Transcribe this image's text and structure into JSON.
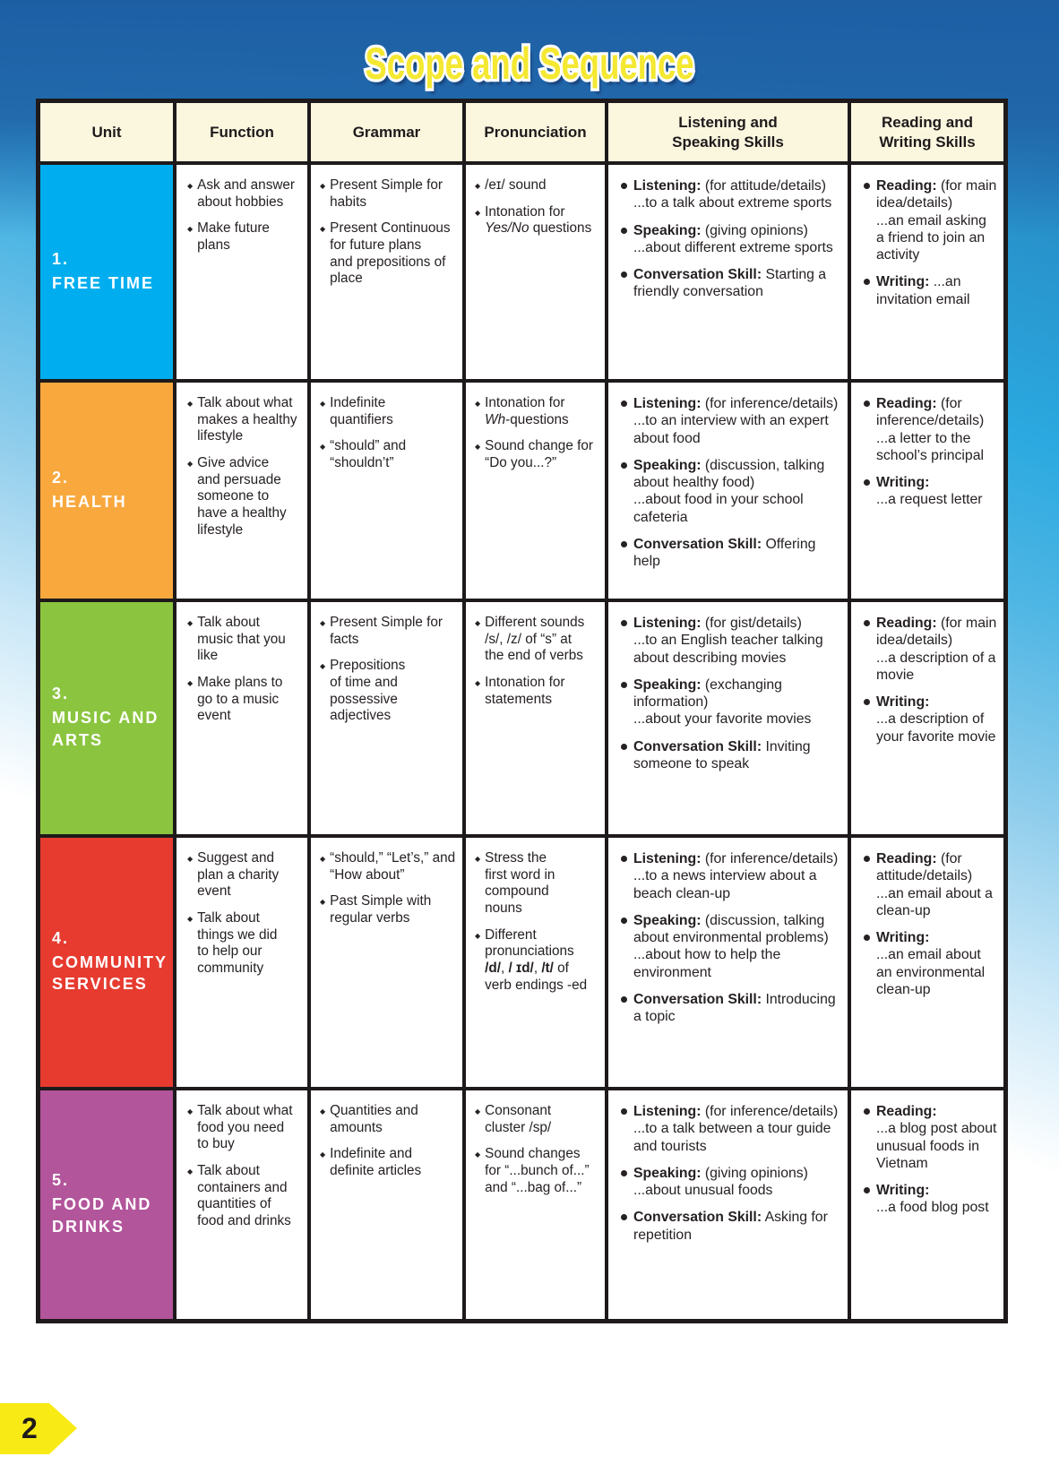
{
  "page": {
    "title": "Scope and Sequence",
    "page_number": "2"
  },
  "table": {
    "headers": [
      "Unit",
      "Function",
      "Grammar",
      "Pronunciation",
      "Listening and\nSpeaking Skills",
      "Reading and\nWriting Skills"
    ],
    "rows": [
      {
        "unit": {
          "number": "1.",
          "name": "FREE TIME",
          "color": "#00AEEF"
        },
        "function": [
          "Ask and answer\nabout hobbies",
          "Make future\nplans"
        ],
        "grammar": [
          "Present Simple for\nhabits",
          "Present Continuous\nfor future plans\nand prepositions of\nplace"
        ],
        "pronunciation": [
          "/eɪ/ sound",
          "Intonation for\n*Yes/No* questions"
        ],
        "listening_speaking": [
          "**Listening:** (for attitude/details)\n...to a talk about extreme sports",
          "**Speaking:** (giving opinions)\n...about different extreme sports",
          "**Conversation Skill:** Starting a\nfriendly conversation"
        ],
        "reading_writing": [
          "**Reading:** (for main\nidea/details)\n...an email asking\na friend to join an\nactivity",
          "**Writing:** ...an\ninvitation email"
        ]
      },
      {
        "unit": {
          "number": "2.",
          "name": "HEALTH",
          "color": "#F9A83E"
        },
        "function": [
          "Talk about what\nmakes a healthy\nlifestyle",
          "Give advice\nand persuade\nsomeone to\nhave a healthy\nlifestyle"
        ],
        "grammar": [
          "Indefinite\nquantifiers",
          "“should” and\n“shouldn’t”"
        ],
        "pronunciation": [
          "Intonation for\n*Wh*-questions",
          "Sound change for\n“Do you...?”"
        ],
        "listening_speaking": [
          "**Listening:** (for inference/details)\n...to an interview with an expert\nabout food",
          "**Speaking:** (discussion, talking\nabout healthy food)\n...about food in your school\ncafeteria",
          "**Conversation Skill:** Offering\nhelp"
        ],
        "reading_writing": [
          "**Reading:** (for\ninference/details)\n...a letter to the\nschool’s principal",
          "**Writing:**\n...a request letter"
        ]
      },
      {
        "unit": {
          "number": "3.",
          "name": "MUSIC AND ARTS",
          "color": "#8BC53F"
        },
        "function": [
          "Talk about\nmusic that you\nlike",
          "Make plans to\ngo to a music\nevent"
        ],
        "grammar": [
          "Present Simple for\nfacts",
          "Prepositions\nof time and\npossessive\nadjectives"
        ],
        "pronunciation": [
          "Different sounds\n/s/, /z/ of “s” at\nthe end of verbs",
          "Intonation for\nstatements"
        ],
        "listening_speaking": [
          "**Listening:** (for gist/details)\n...to an English teacher talking\nabout describing movies",
          "**Speaking:** (exchanging\ninformation)\n...about your favorite movies",
          "**Conversation Skill:** Inviting\nsomeone to speak"
        ],
        "reading_writing": [
          "**Reading:** (for main\nidea/details)\n...a description of a\nmovie",
          "**Writing:**\n...a description of\nyour favorite movie"
        ]
      },
      {
        "unit": {
          "number": "4.",
          "name": "COMMUNITY SERVICES",
          "color": "#E73B30"
        },
        "function": [
          "Suggest and\nplan a charity\nevent",
          "Talk about\nthings we did\nto help our\ncommunity"
        ],
        "grammar": [
          "“should,” “Let’s,” and\n“How about”",
          "Past Simple with\nregular verbs"
        ],
        "pronunciation": [
          "Stress the\nfirst word in\ncompound\nnouns",
          "Different\npronunciations\n**/d/**, **/ ɪd/**, **/t/** of\nverb endings -ed"
        ],
        "listening_speaking": [
          "**Listening:** (for inference/details)\n...to a news interview about a\nbeach clean-up",
          "**Speaking:** (discussion, talking\nabout environmental problems)\n...about how to help the\nenvironment",
          "**Conversation Skill:** Introducing\na topic"
        ],
        "reading_writing": [
          "**Reading:** (for\nattitude/details)\n...an email about a\nclean-up",
          "**Writing:**\n...an email about\nan environmental\nclean-up"
        ]
      },
      {
        "unit": {
          "number": "5.",
          "name": "FOOD AND DRINKS",
          "color": "#B2559B"
        },
        "function": [
          "Talk about what\nfood you need\nto buy",
          "Talk about\ncontainers and\nquantities of\nfood and drinks"
        ],
        "grammar": [
          "Quantities and\namounts",
          "Indefinite and\ndefinite articles"
        ],
        "pronunciation": [
          "Consonant\ncluster /sp/",
          "Sound changes\nfor “...bunch of...”\nand “...bag of...”"
        ],
        "listening_speaking": [
          "**Listening:** (for inference/details)\n...to a talk between a tour guide\nand tourists",
          "**Speaking:** (giving opinions)\n...about unusual foods",
          "**Conversation Skill:** Asking for\nrepetition"
        ],
        "reading_writing": [
          "**Reading:**\n...a blog post about\nunusual foods in\nVietnam",
          "**Writing:**\n...a food blog post"
        ]
      }
    ]
  }
}
